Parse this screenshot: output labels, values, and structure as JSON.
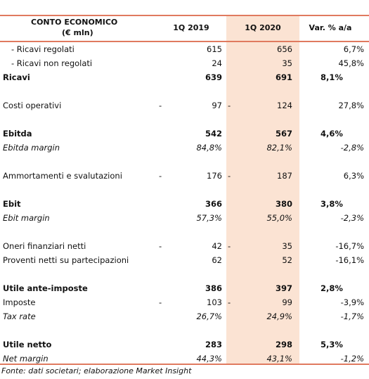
{
  "header": {
    "title": "CONTO ECONOMICO",
    "unit": "(€ mln)",
    "columns": [
      "1Q 2019",
      "1Q 2020",
      "Var. % a/a"
    ]
  },
  "groups": [
    [
      {
        "label": "- Ricavi regolati",
        "style": "sub",
        "v2019": "615",
        "v2020": "656",
        "var": "6,7%"
      },
      {
        "label": "- Ricavi non regolati",
        "style": "sub",
        "v2019": "24",
        "v2020": "35",
        "var": "45,8%"
      },
      {
        "label": "Ricavi",
        "style": "bold",
        "v2019": "639",
        "v2020": "691",
        "var": "8,1%"
      }
    ],
    [
      {
        "label": "Costi operativi",
        "style": "normal",
        "sign2019": "-",
        "v2019": "97",
        "sign2020": "-",
        "v2020": "124",
        "var": "27,8%"
      }
    ],
    [
      {
        "label": "Ebitda",
        "style": "bold",
        "v2019": "542",
        "v2020": "567",
        "var": "4,6%"
      },
      {
        "label": "Ebitda margin",
        "style": "italic",
        "v2019": "84,8%",
        "v2020": "82,1%",
        "var": "-2,8%"
      }
    ],
    [
      {
        "label": "Ammortamenti e svalutazioni",
        "style": "normal",
        "sign2019": "-",
        "v2019": "176",
        "sign2020": "-",
        "v2020": "187",
        "var": "6,3%"
      }
    ],
    [
      {
        "label": "Ebit",
        "style": "bold",
        "v2019": "366",
        "v2020": "380",
        "var": "3,8%"
      },
      {
        "label": "Ebit margin",
        "style": "italic",
        "v2019": "57,3%",
        "v2020": "55,0%",
        "var": "-2,3%"
      }
    ],
    [
      {
        "label": "Oneri finanziari netti",
        "style": "normal",
        "sign2019": "-",
        "v2019": "42",
        "sign2020": "-",
        "v2020": "35",
        "var": "-16,7%"
      },
      {
        "label": "Proventi netti su partecipazioni",
        "style": "normal",
        "v2019": "62",
        "v2020": "52",
        "var": "-16,1%"
      }
    ],
    [
      {
        "label": "Utile ante-imposte",
        "style": "bold",
        "v2019": "386",
        "v2020": "397",
        "var": "2,8%"
      },
      {
        "label": "Imposte",
        "style": "normal",
        "sign2019": "-",
        "v2019": "103",
        "sign2020": "-",
        "v2020": "99",
        "var": "-3,9%"
      },
      {
        "label": "Tax rate",
        "style": "italic",
        "v2019": "26,7%",
        "v2020": "24,9%",
        "var": "-1,7%"
      }
    ],
    [
      {
        "label": "Utile netto",
        "style": "bold",
        "v2019": "283",
        "v2020": "298",
        "var": "5,3%"
      },
      {
        "label": "Net margin",
        "style": "italic",
        "v2019": "44,3%",
        "v2020": "43,1%",
        "var": "-1,2%"
      }
    ]
  ],
  "footer": "Fonte: dati societari; elaborazione Market Insight"
}
